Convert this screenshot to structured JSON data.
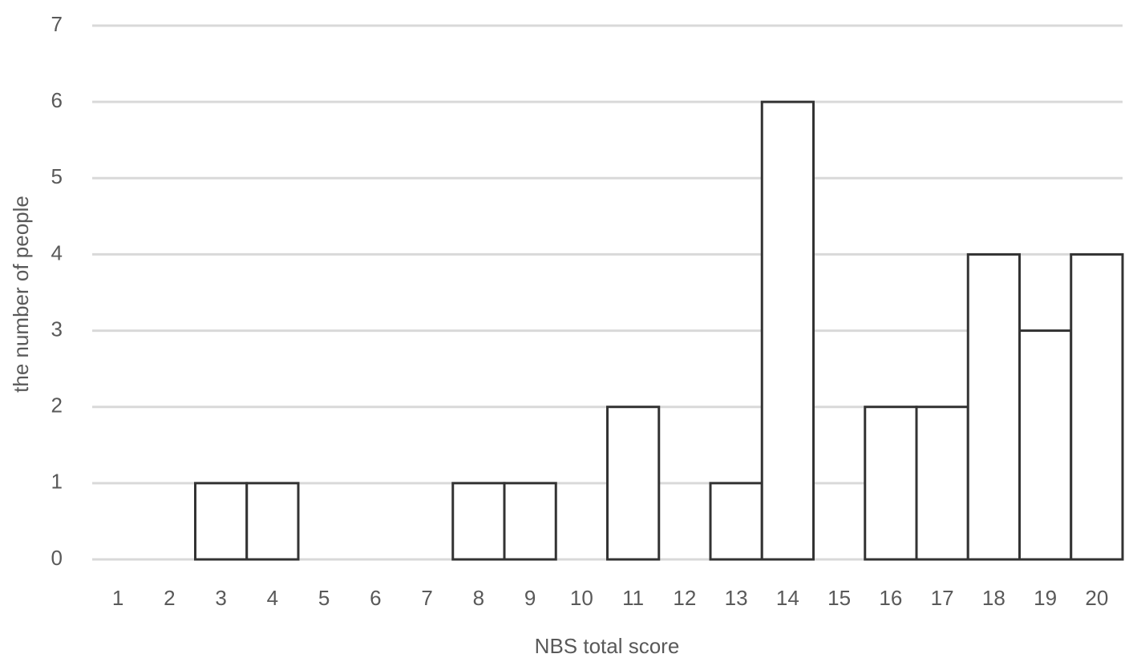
{
  "chart_data": {
    "type": "bar",
    "x_label": "NBS total score",
    "y_label": "the number of people",
    "categories": [
      "1",
      "2",
      "3",
      "4",
      "5",
      "6",
      "7",
      "8",
      "9",
      "10",
      "11",
      "12",
      "13",
      "14",
      "15",
      "16",
      "17",
      "18",
      "19",
      "20"
    ],
    "values": [
      0,
      0,
      1,
      1,
      0,
      0,
      0,
      1,
      1,
      0,
      2,
      0,
      1,
      6,
      0,
      2,
      2,
      4,
      3,
      4
    ],
    "color": "#ffffff",
    "edge_color": "#333333",
    "ylim": [
      0,
      7
    ],
    "yticks": [
      0,
      1,
      2,
      3,
      4,
      5,
      6,
      7
    ],
    "grid": true
  }
}
